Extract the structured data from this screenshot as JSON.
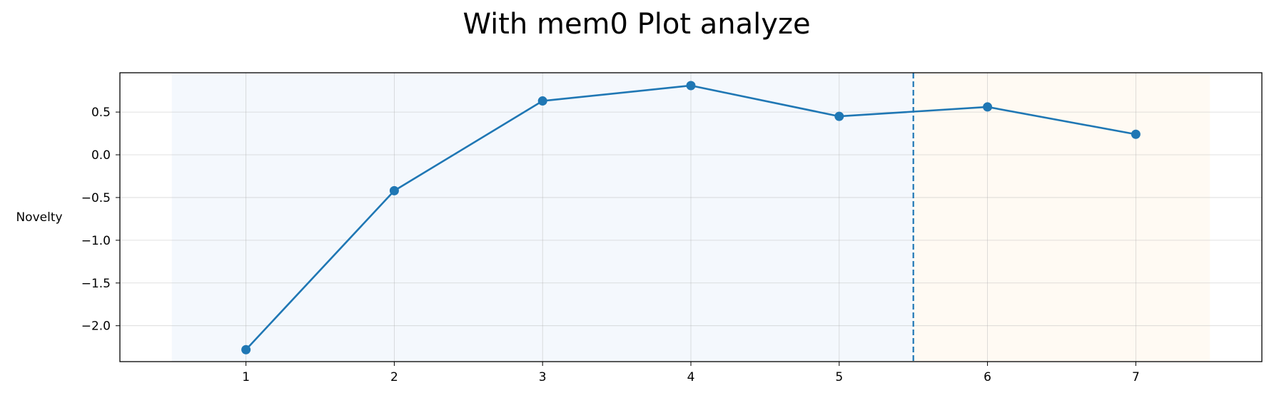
{
  "chart_data": {
    "type": "line",
    "title": "With mem0 Plot analyze",
    "xlabel": "",
    "ylabel": "Novelty",
    "x": [
      1,
      2,
      3,
      4,
      5,
      6,
      7
    ],
    "series": [
      {
        "values": [
          -2.28,
          -0.42,
          0.63,
          0.81,
          0.45,
          0.56,
          0.24
        ],
        "color": "#1f77b4",
        "marker": "circle"
      }
    ],
    "xticks": [
      "1",
      "2",
      "3",
      "4",
      "5",
      "6",
      "7"
    ],
    "yticks": [
      "0.5",
      "0.0",
      "−0.5",
      "−1.0",
      "−1.5",
      "−2.0"
    ],
    "ytick_values": [
      0.5,
      0.0,
      -0.5,
      -1.0,
      -1.5,
      -2.0
    ],
    "xlim": [
      0.15,
      7.85
    ],
    "ylim": [
      -2.42,
      0.96
    ],
    "grid": true,
    "shaded_regions": [
      {
        "x_range": [
          0.5,
          5.5
        ],
        "color": "#f4f8fd"
      },
      {
        "x_range": [
          5.5,
          7.5
        ],
        "color": "#fffaf3"
      }
    ],
    "vertical_line": {
      "x": 5.5,
      "style": "dashed",
      "color": "#1f77b4"
    }
  }
}
